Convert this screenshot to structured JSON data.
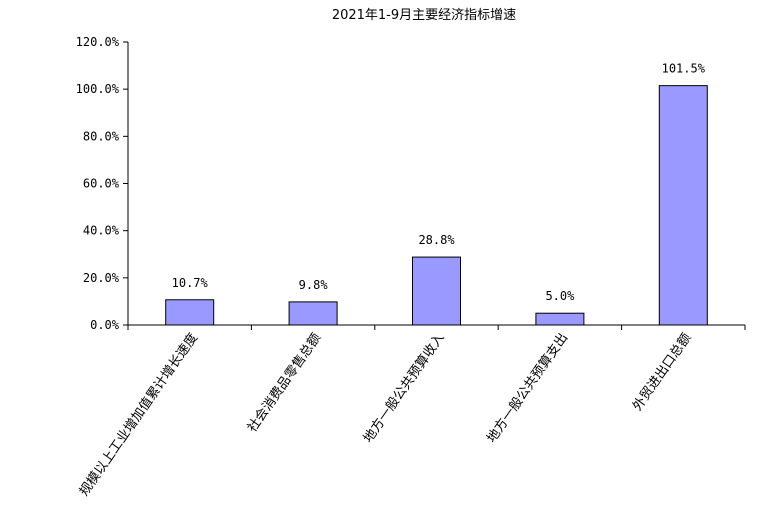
{
  "chart_data": {
    "type": "bar",
    "title": "2021年1-9月主要经济指标增速",
    "xlabel": "",
    "ylabel": "",
    "categories": [
      "规模以上工业增加值累计增长速度",
      "社会消费品零售总额",
      "地方一般公共预算收入",
      "地方一般公共预算支出",
      "外贸进出口总额"
    ],
    "values": [
      10.7,
      9.8,
      28.8,
      5.0,
      101.5
    ],
    "value_labels": [
      "10.7%",
      "9.8%",
      "28.8%",
      "5.0%",
      "101.5%"
    ],
    "y_ticks": [
      "0.0%",
      "20.0%",
      "40.0%",
      "60.0%",
      "80.0%",
      "100.0%",
      "120.0%"
    ],
    "ylim": [
      0,
      120
    ],
    "grid": false,
    "legend": "none",
    "bar_color": "#9999ff",
    "bar_edge_color": "#000000"
  }
}
